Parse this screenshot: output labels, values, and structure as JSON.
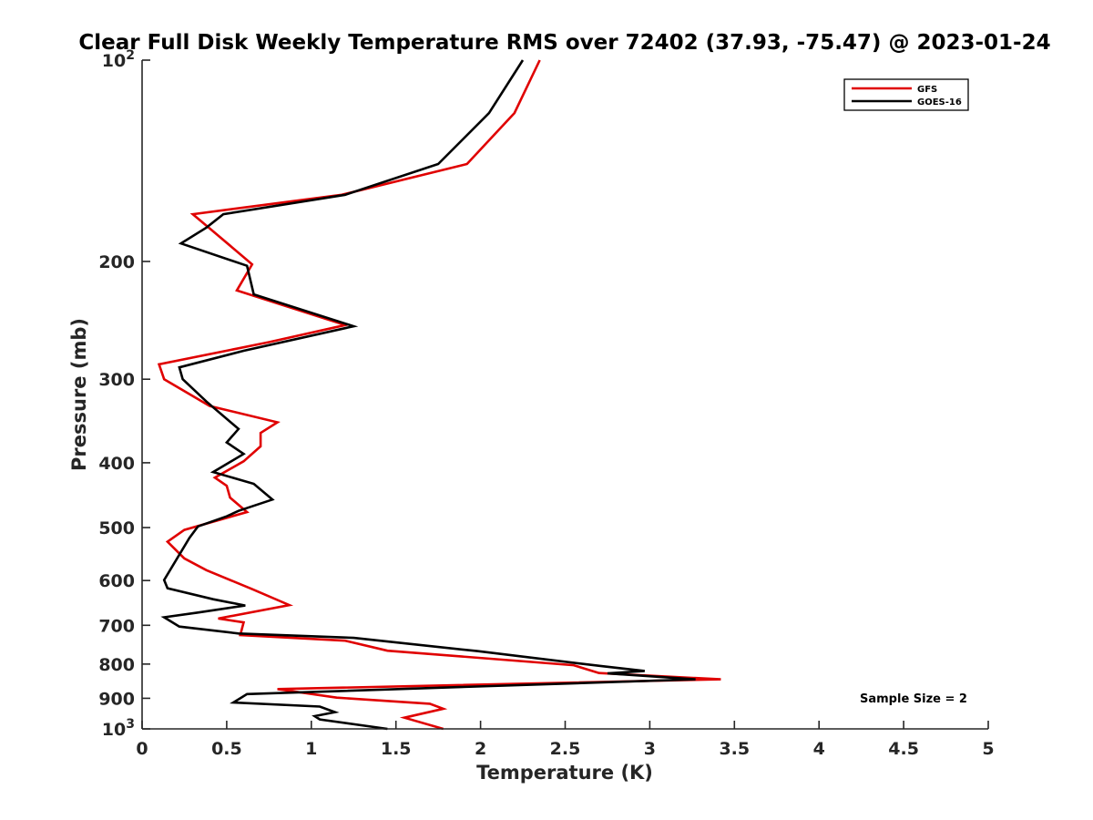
{
  "chart_data": {
    "type": "line",
    "title": "Clear Full Disk Weekly Temperature RMS over 72402 (37.93, -75.47) @ 2023-01-24",
    "xlabel": "Temperature (K)",
    "ylabel": "Pressure (mb)",
    "xlim": [
      0,
      5
    ],
    "ylim": [
      100,
      1000
    ],
    "y_scale": "log",
    "y_direction": "reversed",
    "grid": false,
    "legend_position": "top-right",
    "x_ticks": [
      0,
      0.5,
      1,
      1.5,
      2,
      2.5,
      3,
      3.5,
      4,
      4.5,
      5
    ],
    "x_tick_labels": [
      "0",
      "0.5",
      "1",
      "1.5",
      "2",
      "2.5",
      "3",
      "3.5",
      "4",
      "4.5",
      "5"
    ],
    "y_ticks": [
      100,
      200,
      300,
      400,
      500,
      600,
      700,
      800,
      900,
      1000
    ],
    "y_tick_labels": [
      {
        "base": "10",
        "exp": "2"
      },
      {
        "base": "200"
      },
      {
        "base": "300"
      },
      {
        "base": "400"
      },
      {
        "base": "500"
      },
      {
        "base": "600"
      },
      {
        "base": "700"
      },
      {
        "base": "800"
      },
      {
        "base": "900"
      },
      {
        "base": "10",
        "exp": "3"
      }
    ],
    "annotation": "Sample Size = 2",
    "series": [
      {
        "name": "GFS",
        "color": "#e00000",
        "points": [
          [
            2.35,
            100
          ],
          [
            2.2,
            120
          ],
          [
            1.92,
            143
          ],
          [
            1.18,
            159
          ],
          [
            0.3,
            170
          ],
          [
            0.45,
            183
          ],
          [
            0.65,
            202
          ],
          [
            0.56,
            221
          ],
          [
            1.2,
            249
          ],
          [
            0.75,
            264
          ],
          [
            0.1,
            285
          ],
          [
            0.13,
            300
          ],
          [
            0.4,
            329
          ],
          [
            0.8,
            348
          ],
          [
            0.7,
            361
          ],
          [
            0.7,
            378
          ],
          [
            0.6,
            398
          ],
          [
            0.43,
            421
          ],
          [
            0.5,
            433
          ],
          [
            0.52,
            451
          ],
          [
            0.62,
            474
          ],
          [
            0.25,
            504
          ],
          [
            0.15,
            525
          ],
          [
            0.25,
            556
          ],
          [
            0.38,
            579
          ],
          [
            0.65,
            618
          ],
          [
            0.87,
            653
          ],
          [
            0.45,
            684
          ],
          [
            0.6,
            693
          ],
          [
            0.58,
            724
          ],
          [
            1.2,
            738
          ],
          [
            1.45,
            764
          ],
          [
            2.55,
            803
          ],
          [
            2.7,
            825
          ],
          [
            3.42,
            843
          ],
          [
            0.8,
            872
          ],
          [
            1.15,
            898
          ],
          [
            1.7,
            917
          ],
          [
            1.78,
            933
          ],
          [
            1.55,
            962
          ],
          [
            1.78,
            1000
          ]
        ]
      },
      {
        "name": "GOES-16",
        "color": "#000000",
        "points": [
          [
            2.25,
            100
          ],
          [
            2.05,
            120
          ],
          [
            1.75,
            143
          ],
          [
            1.2,
            159
          ],
          [
            0.48,
            170
          ],
          [
            0.38,
            178
          ],
          [
            0.23,
            188
          ],
          [
            0.62,
            203
          ],
          [
            0.66,
            224
          ],
          [
            1.25,
            250
          ],
          [
            0.6,
            272
          ],
          [
            0.22,
            288
          ],
          [
            0.24,
            300
          ],
          [
            0.38,
            324
          ],
          [
            0.57,
            356
          ],
          [
            0.5,
            373
          ],
          [
            0.6,
            388
          ],
          [
            0.42,
            413
          ],
          [
            0.66,
            430
          ],
          [
            0.77,
            454
          ],
          [
            0.57,
            472
          ],
          [
            0.5,
            481
          ],
          [
            0.33,
            498
          ],
          [
            0.28,
            518
          ],
          [
            0.13,
            599
          ],
          [
            0.15,
            616
          ],
          [
            0.42,
            640
          ],
          [
            0.61,
            654
          ],
          [
            0.33,
            670
          ],
          [
            0.13,
            681
          ],
          [
            0.22,
            703
          ],
          [
            0.57,
            720
          ],
          [
            1.25,
            731
          ],
          [
            1.98,
            765
          ],
          [
            2.72,
            806
          ],
          [
            2.97,
            819
          ],
          [
            2.75,
            826
          ],
          [
            3.27,
            843
          ],
          [
            0.62,
            887
          ],
          [
            0.54,
            913
          ],
          [
            1.05,
            926
          ],
          [
            1.14,
            944
          ],
          [
            1.02,
            957
          ],
          [
            1.05,
            968
          ],
          [
            1.45,
            1000
          ]
        ]
      }
    ]
  }
}
